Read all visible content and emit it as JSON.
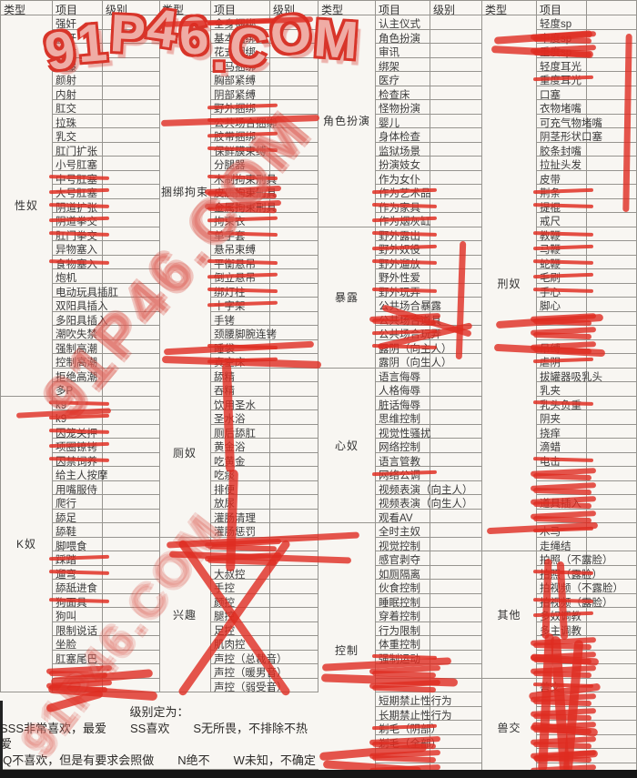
{
  "watermark": {
    "text": "91P46.COM"
  },
  "legend": {
    "title": "级别定为：",
    "line1": "SSS非常喜欢，最爱　　SS喜欢　　S无所畏，不排除不热爱",
    "line2": "Q不喜欢，但是有要求会照做　　N绝不　　W未知，不确定"
  },
  "groups": [
    {
      "headers": [
        "类型",
        "项目",
        "级别"
      ],
      "sections": [
        {
          "label": "性奴",
          "items": [
            [
              "强奸",
              0
            ],
            [
              "轮奸",
              0
            ],
            [
              "深喉",
              0
            ],
            [
              "口爆",
              0
            ],
            [
              "颜射",
              0
            ],
            [
              "内射",
              0
            ],
            [
              "肛交",
              0
            ],
            [
              "拉珠",
              0
            ],
            [
              "乳交",
              0
            ],
            [
              "肛门扩张",
              0
            ],
            [
              "小号肛塞",
              0
            ],
            [
              "中号肛塞",
              1
            ],
            [
              "大号肛塞",
              1
            ],
            [
              "阴道扩张",
              1
            ],
            [
              "阴道拳交",
              1
            ],
            [
              "肛门拳交",
              1
            ],
            [
              "异物塞入",
              0
            ],
            [
              "食物塞入",
              1
            ],
            [
              "炮机",
              0
            ],
            [
              "电动玩具插肛",
              0
            ],
            [
              "双阳具插入",
              0
            ],
            [
              "多阳具插入",
              0
            ],
            [
              "潮吹失禁",
              0
            ],
            [
              "强制高潮",
              0
            ],
            [
              "控制高潮",
              0
            ],
            [
              "拒绝高潮",
              0
            ],
            [
              "多P",
              0
            ]
          ]
        },
        {
          "label": "K奴",
          "items": [
            [
              "k9",
              1
            ],
            [
              "k9",
              1
            ],
            [
              "囚笼关押",
              1
            ],
            [
              "项圈镣铐",
              1
            ],
            [
              "囚禁饲养",
              1
            ],
            [
              "给主人按摩",
              0
            ],
            [
              "用嘴服侍",
              0
            ],
            [
              "爬行",
              0
            ],
            [
              "舔足",
              0
            ],
            [
              "舔鞋",
              0
            ],
            [
              "脚喂食",
              0
            ],
            [
              "踩踏",
              1
            ],
            [
              "遛弯",
              1
            ],
            [
              "舔舐进食",
              0
            ],
            [
              "狗面具",
              1
            ],
            [
              "狗叫",
              0
            ],
            [
              "限制说话",
              0
            ],
            [
              "坐脸",
              0
            ],
            [
              "肛塞尾巴",
              0
            ],
            [
              "",
              2
            ],
            [
              "",
              2
            ]
          ]
        }
      ]
    },
    {
      "headers": [
        "类型",
        "项目",
        "级别"
      ],
      "sections": [
        {
          "label": "捆绑拘束",
          "items": [
            [
              "全身捆绑",
              1
            ],
            [
              "基本捆绑",
              0
            ],
            [
              "花式捆绑",
              0
            ],
            [
              "驷马捆绑",
              0
            ],
            [
              "胸部紧缚",
              0
            ],
            [
              "阴部紧缚",
              0
            ],
            [
              "野外捆绑",
              1
            ],
            [
              "公共场合捆绑",
              1
            ],
            [
              "胶带捆绑",
              1
            ],
            [
              "保鲜膜束缚",
              1
            ],
            [
              "分腿器",
              0
            ],
            [
              "木制拘束刑具",
              1
            ],
            [
              "皮质拘束刑具",
              2
            ],
            [
              "金属拘束刑具",
              2
            ],
            [
              "拘束衣",
              1
            ],
            [
              "单手套",
              1
            ],
            [
              "悬吊束缚",
              0
            ],
            [
              "平衡悬吊",
              1
            ],
            [
              "倒立悬吊",
              1
            ],
            [
              "绑灯柱",
              1
            ],
            [
              "十字架",
              1
            ],
            [
              "手铐",
              0
            ],
            [
              "颈腰脚腕连铐",
              0
            ],
            [
              "睡袋",
              1
            ],
            [
              "真空床",
              1
            ]
          ]
        },
        {
          "label": "厕奴",
          "items": [
            [
              "舔精",
              0
            ],
            [
              "吞精",
              0
            ],
            [
              "饮用圣水",
              0
            ],
            [
              "圣水浴",
              0
            ],
            [
              "厕后舔肛",
              0
            ],
            [
              "黄金浴",
              0
            ],
            [
              "吃黄金",
              0
            ],
            [
              "吃痰",
              0
            ],
            [
              "排便",
              0
            ],
            [
              "放尿",
              0
            ],
            [
              "灌肠清理",
              0
            ],
            [
              "灌肠惩罚",
              0
            ]
          ]
        },
        {
          "label": "兴趣",
          "items": [
            [
              "",
              2
            ],
            [
              "",
              2
            ],
            [
              "大叔控",
              0
            ],
            [
              "手控",
              0
            ],
            [
              "颜控",
              0
            ],
            [
              "腿控",
              0
            ],
            [
              "足控",
              0
            ],
            [
              "肌肉控",
              0
            ],
            [
              "声控（总裁音）",
              0
            ],
            [
              "声控（暖男音）",
              0
            ],
            [
              "声控（弱受音）",
              0
            ]
          ]
        }
      ]
    },
    {
      "headers": [
        "类型",
        "项目",
        "级别"
      ],
      "sections": [
        {
          "label": "角色扮演",
          "items": [
            [
              "认主仪式",
              0
            ],
            [
              "角色扮演",
              0
            ],
            [
              "审讯",
              0
            ],
            [
              "绑架",
              0
            ],
            [
              "医疗",
              0
            ],
            [
              "检查床",
              0
            ],
            [
              "怪物扮演",
              0
            ],
            [
              "婴儿",
              0
            ],
            [
              "身体检查",
              0
            ],
            [
              "监狱场景",
              0
            ],
            [
              "扮演妓女",
              0
            ],
            [
              "作为女仆",
              0
            ],
            [
              "作为艺术品",
              1
            ],
            [
              "作为家具",
              1
            ],
            [
              "作为烟灰缸",
              1
            ]
          ]
        },
        {
          "label": "暴露",
          "items": [
            [
              "野外露出",
              1
            ],
            [
              "野外奴役",
              1
            ],
            [
              "野外遛放",
              1
            ],
            [
              "野外性爱",
              0
            ],
            [
              "野外玩弄",
              1
            ],
            [
              "公共场合暴露",
              0
            ],
            [
              "公共场合道具",
              2
            ],
            [
              "公共场合玩弄",
              1
            ],
            [
              "露阴（向主人）",
              1
            ],
            [
              "露阴（向生人）",
              0
            ]
          ]
        },
        {
          "label": "心奴",
          "items": [
            [
              "语言侮辱",
              0
            ],
            [
              "人格侮辱",
              0
            ],
            [
              "脏话侮辱",
              0
            ],
            [
              "思维控制",
              0
            ],
            [
              "视觉性骚扰",
              0
            ],
            [
              "网络控制",
              0
            ],
            [
              "语言管教",
              0
            ],
            [
              "网络公调",
              1
            ],
            [
              "视频表演（向主人）",
              0
            ],
            [
              "视频表演（向生人）",
              0
            ],
            [
              "观看AV",
              0
            ]
          ]
        },
        {
          "label": "控制",
          "items": [
            [
              "全时主奴",
              0
            ],
            [
              "视觉控制",
              0
            ],
            [
              "感官剥夺",
              0
            ],
            [
              "如厕隔离",
              0
            ],
            [
              "伙食控制",
              0
            ],
            [
              "睡眠控制",
              0
            ],
            [
              "穿着控制",
              0
            ],
            [
              "行为限制",
              0
            ],
            [
              "体重控制",
              0
            ],
            [
              "强制运动",
              1
            ],
            [
              "",
              2
            ],
            [
              "",
              2
            ],
            [
              "短期禁止性行为",
              0
            ],
            [
              "长期禁止性行为",
              0
            ],
            [
              "剃毛（阴部）",
              1
            ],
            [
              "剃毛（全部）",
              2
            ],
            [
              "",
              2
            ],
            [
              "",
              2
            ]
          ]
        }
      ]
    },
    {
      "headers": [
        "类型",
        "项目",
        ""
      ],
      "sections": [
        {
          "label": "刑奴",
          "items": [
            [
              "轻度sp",
              0
            ],
            [
              "中度sp",
              2
            ],
            [
              "重度sp",
              2
            ],
            [
              "轻度耳光",
              0
            ],
            [
              "重度耳光",
              1
            ],
            [
              "口塞",
              0
            ],
            [
              "衣物堵嘴",
              0
            ],
            [
              "可充气物堵嘴",
              0
            ],
            [
              "阴茎形状口塞",
              0
            ],
            [
              "胶条封嘴",
              0
            ],
            [
              "拉扯头发",
              0
            ],
            [
              "皮带",
              0
            ],
            [
              "荆条",
              1
            ],
            [
              "提棍",
              1
            ],
            [
              "戒尺",
              0
            ],
            [
              "教鞭",
              1
            ],
            [
              "马鞭",
              1
            ],
            [
              "蛇鞭",
              1
            ],
            [
              "毛刷",
              1
            ],
            [
              "手心",
              1
            ],
            [
              "脚心",
              0
            ],
            [
              "",
              2
            ],
            [
              "",
              2
            ],
            [
              "吊缚",
              2
            ],
            [
              "虐阴",
              1
            ],
            [
              "拔罐器吸乳头",
              0
            ],
            [
              "乳夹",
              0
            ],
            [
              "乳头负重",
              1
            ],
            [
              "阴夹",
              0
            ],
            [
              "挠痒",
              0
            ],
            [
              "滴蜡",
              0
            ],
            [
              "电击",
              1
            ],
            [
              "",
              2
            ],
            [
              "",
              2
            ],
            [
              "道具插入",
              2
            ],
            [
              "",
              2
            ],
            [
              "木马",
              1
            ],
            [
              "走绳结",
              0
            ]
          ]
        },
        {
          "label": "其他",
          "items": [
            [
              "拍照（不露脸）",
              0
            ],
            [
              "拍照（露脸）",
              1
            ],
            [
              "拍视频（不露脸）",
              0
            ],
            [
              "拍视频（露脸）",
              1
            ],
            [
              "多奴调教",
              1
            ],
            [
              "多主调教",
              0
            ],
            [
              "",
              2
            ],
            [
              "",
              2
            ],
            [
              "",
              2
            ]
          ]
        },
        {
          "label": "兽交",
          "items": [
            [
              "兽交",
              1
            ],
            [
              "",
              2
            ],
            [
              "",
              2
            ],
            [
              "",
              2
            ],
            [
              "",
              2
            ],
            [
              "",
              2
            ],
            [
              "",
              2
            ]
          ]
        }
      ]
    }
  ]
}
